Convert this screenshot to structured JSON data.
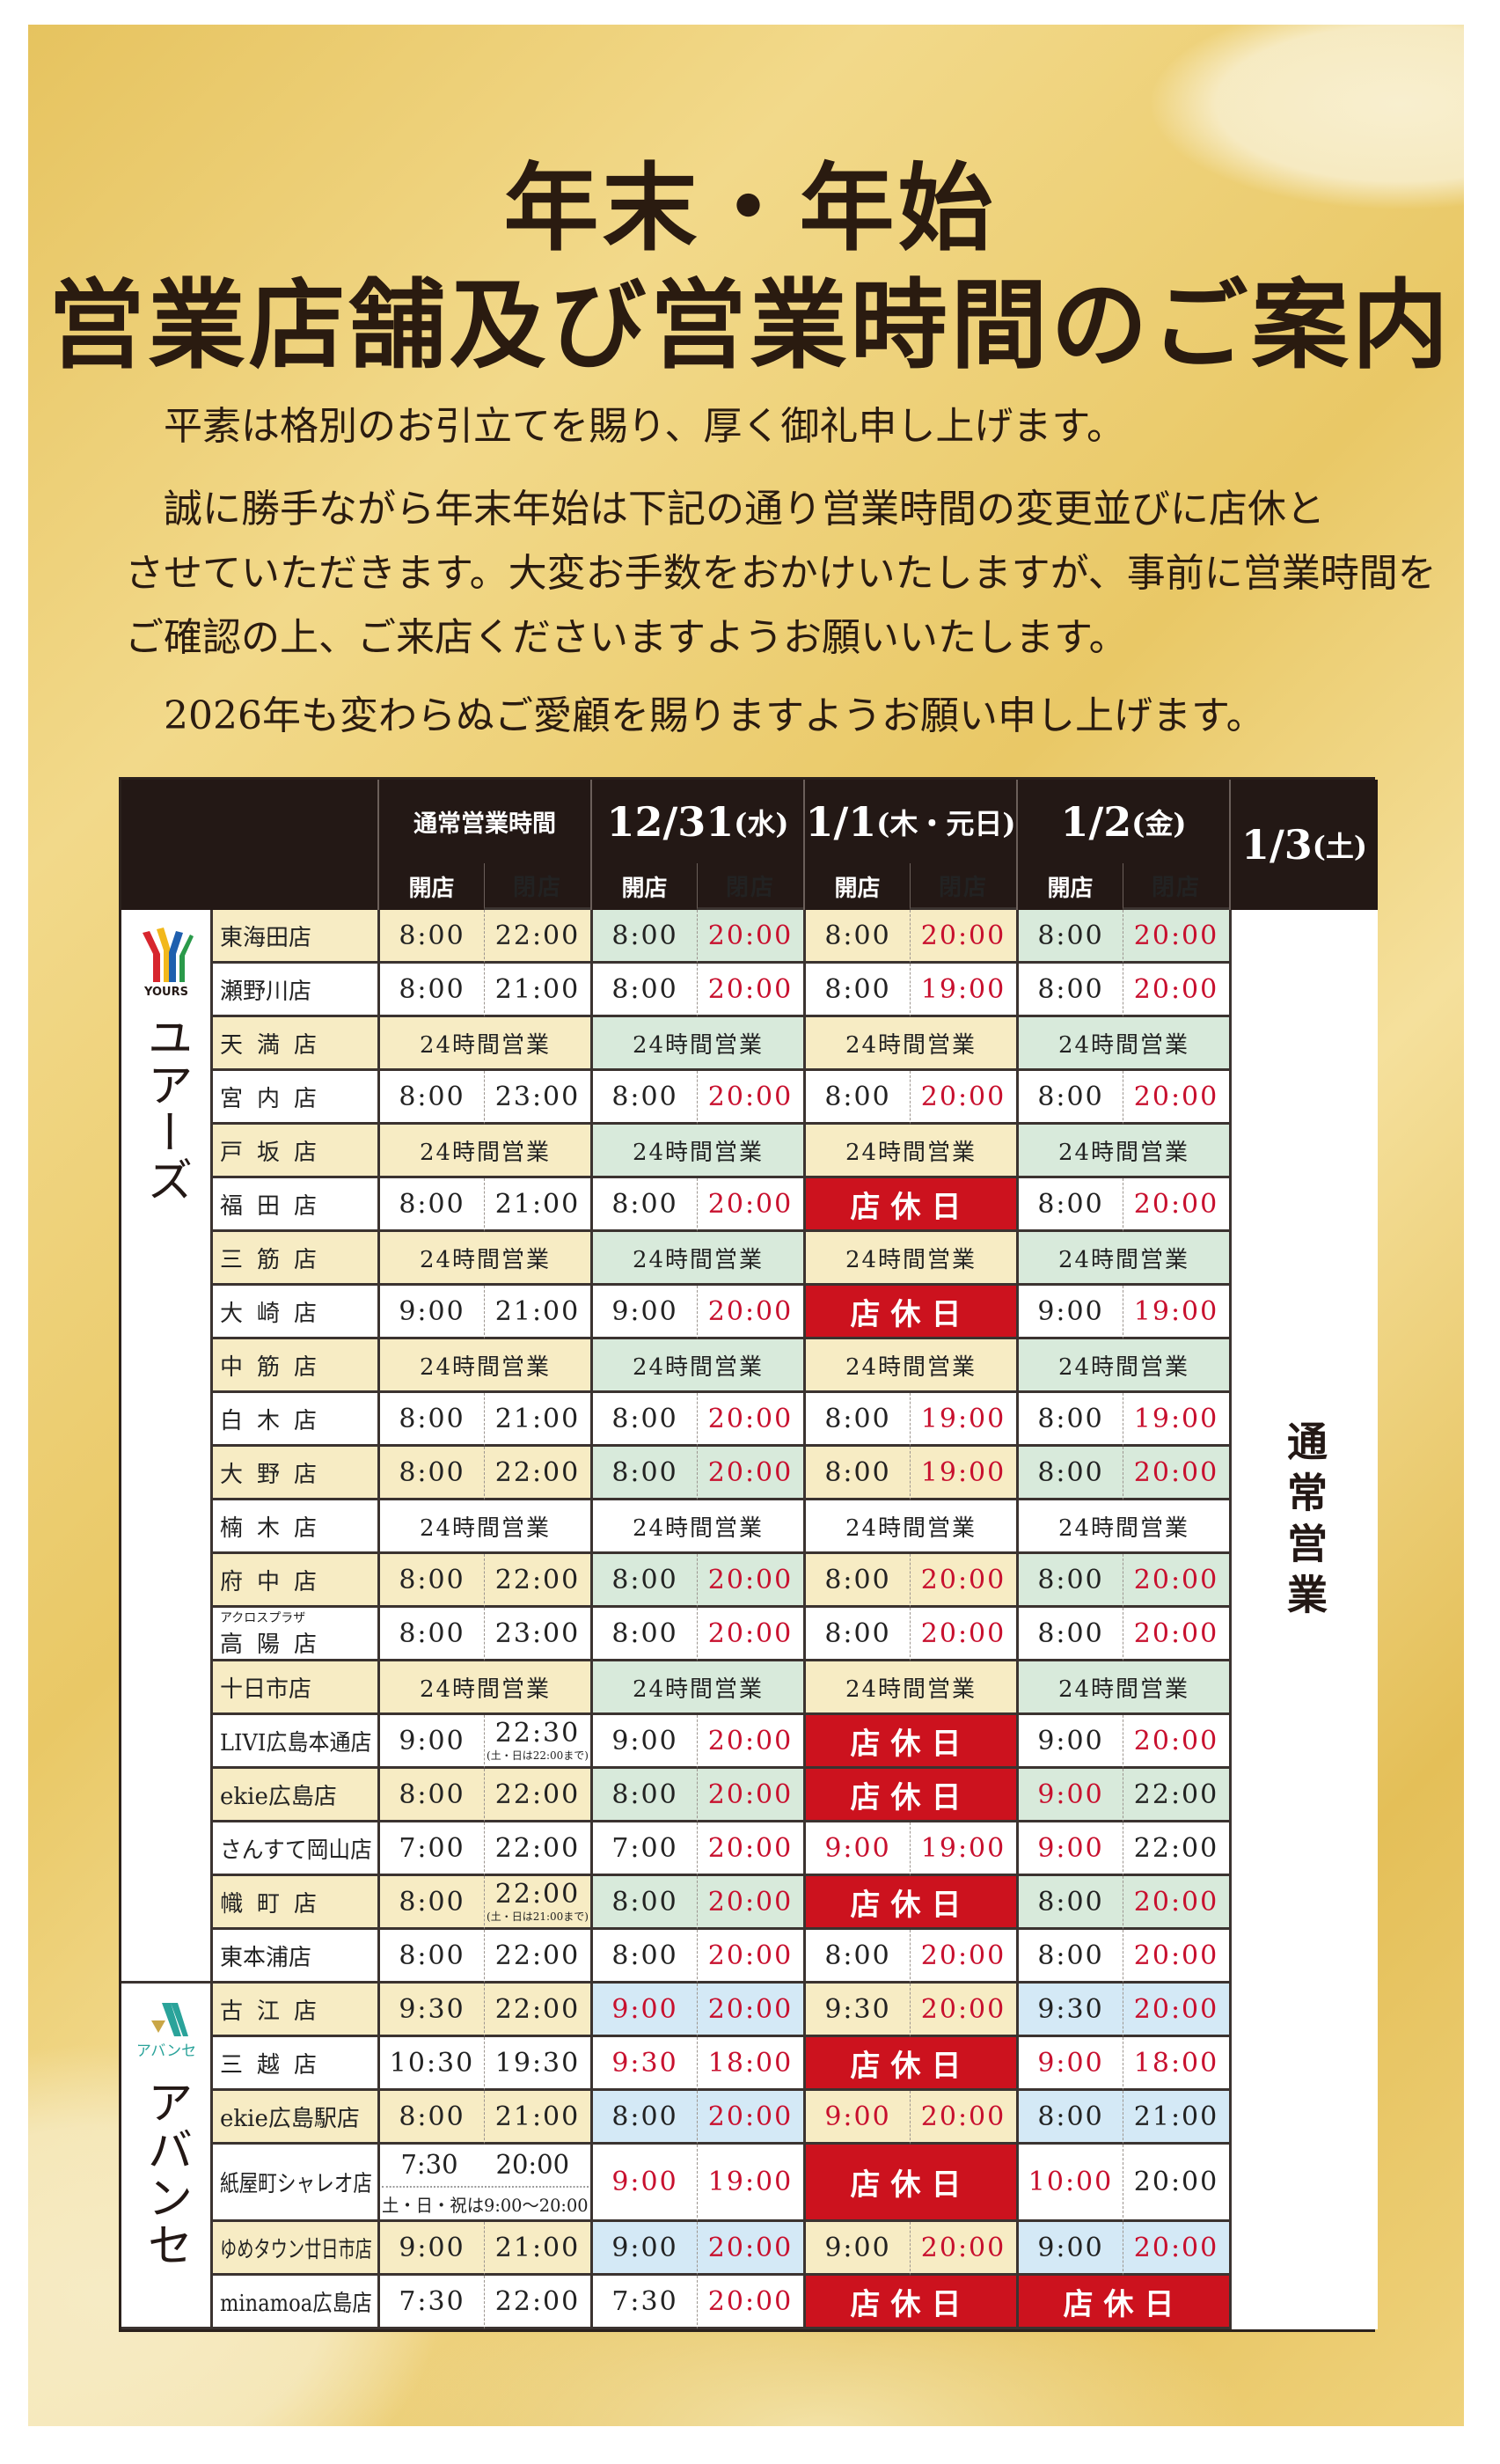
{
  "title": {
    "line1": "年末・年始",
    "line2": "営業店舗及び営業時間のご案内"
  },
  "intro": {
    "p1": "平素は格別のお引立てを賜り、厚く御礼申し上げます。",
    "p2": [
      "誠に勝手ながら年末年始は下記の通り営業時間の変更並びに店休と",
      "させていただきます。大変お手数をおかけいたしますが、事前に営業時間を",
      "ご確認の上、ご来店くださいますようお願いいたします。"
    ],
    "p3": "2026年も変わらぬご愛顧を賜りますようお願い申し上げます。"
  },
  "colors": {
    "header": "#231815",
    "yellow": "#f7ecc4",
    "green": "#d8eadb",
    "blue": "#d4e9f6",
    "closed": "#cc121e",
    "red_text": "#c8102e"
  },
  "table": {
    "normal_label": "通常営業時間",
    "dates": [
      {
        "date": "12/31",
        "day": "(水)"
      },
      {
        "date": "1/1",
        "day": "(木・元日)"
      },
      {
        "date": "1/2",
        "day": "(金)"
      },
      {
        "date": "1/3",
        "day": "(土)"
      }
    ],
    "open_label": "開店",
    "close_label": "閉店",
    "labels": {
      "h24": "24時間営業",
      "closed": "店休日"
    },
    "jan3_text": "通常営業",
    "groups": [
      {
        "brand": "ユアーズ",
        "logo_text": "YOURS",
        "alt_color": "#d8eadb",
        "rows": [
          {
            "name": "東海田店",
            "shaded": true,
            "normal": {
              "open": "8:00",
              "close": "22:00"
            },
            "days": [
              {
                "open": "8:00",
                "close": "20:00",
                "open_red": false,
                "close_red": true
              },
              {
                "open": "8:00",
                "close": "20:00",
                "open_red": false,
                "close_red": true
              },
              {
                "open": "8:00",
                "close": "20:00",
                "open_red": false,
                "close_red": true
              }
            ]
          },
          {
            "name": "瀬野川店",
            "shaded": false,
            "normal": {
              "open": "8:00",
              "close": "21:00"
            },
            "days": [
              {
                "open": "8:00",
                "close": "20:00",
                "open_red": false,
                "close_red": true
              },
              {
                "open": "8:00",
                "close": "19:00",
                "open_red": false,
                "close_red": true
              },
              {
                "open": "8:00",
                "close": "20:00",
                "open_red": false,
                "close_red": true
              }
            ]
          },
          {
            "name": "天満店",
            "shaded": true,
            "normal": {
              "status": "24h"
            },
            "days": [
              {
                "status": "24h"
              },
              {
                "status": "24h"
              },
              {
                "status": "24h"
              }
            ]
          },
          {
            "name": "宮内店",
            "shaded": false,
            "normal": {
              "open": "8:00",
              "close": "23:00"
            },
            "days": [
              {
                "open": "8:00",
                "close": "20:00",
                "open_red": false,
                "close_red": true
              },
              {
                "open": "8:00",
                "close": "20:00",
                "open_red": false,
                "close_red": true
              },
              {
                "open": "8:00",
                "close": "20:00",
                "open_red": false,
                "close_red": true
              }
            ]
          },
          {
            "name": "戸坂店",
            "shaded": true,
            "normal": {
              "status": "24h"
            },
            "days": [
              {
                "status": "24h"
              },
              {
                "status": "24h"
              },
              {
                "status": "24h"
              }
            ]
          },
          {
            "name": "福田店",
            "shaded": false,
            "normal": {
              "open": "8:00",
              "close": "21:00"
            },
            "days": [
              {
                "open": "8:00",
                "close": "20:00",
                "open_red": false,
                "close_red": true
              },
              {
                "status": "closed"
              },
              {
                "open": "8:00",
                "close": "20:00",
                "open_red": false,
                "close_red": true
              }
            ]
          },
          {
            "name": "三筋店",
            "shaded": true,
            "normal": {
              "status": "24h"
            },
            "days": [
              {
                "status": "24h"
              },
              {
                "status": "24h"
              },
              {
                "status": "24h"
              }
            ]
          },
          {
            "name": "大崎店",
            "shaded": false,
            "normal": {
              "open": "9:00",
              "close": "21:00"
            },
            "days": [
              {
                "open": "9:00",
                "close": "20:00",
                "open_red": false,
                "close_red": true
              },
              {
                "status": "closed"
              },
              {
                "open": "9:00",
                "close": "19:00",
                "open_red": false,
                "close_red": true
              }
            ]
          },
          {
            "name": "中筋店",
            "shaded": true,
            "normal": {
              "status": "24h"
            },
            "days": [
              {
                "status": "24h"
              },
              {
                "status": "24h"
              },
              {
                "status": "24h"
              }
            ]
          },
          {
            "name": "白木店",
            "shaded": false,
            "normal": {
              "open": "8:00",
              "close": "21:00"
            },
            "days": [
              {
                "open": "8:00",
                "close": "20:00",
                "open_red": false,
                "close_red": true
              },
              {
                "open": "8:00",
                "close": "19:00",
                "open_red": false,
                "close_red": true
              },
              {
                "open": "8:00",
                "close": "19:00",
                "open_red": false,
                "close_red": true
              }
            ]
          },
          {
            "name": "大野店",
            "shaded": true,
            "normal": {
              "open": "8:00",
              "close": "22:00"
            },
            "days": [
              {
                "open": "8:00",
                "close": "20:00",
                "open_red": false,
                "close_red": true
              },
              {
                "open": "8:00",
                "close": "19:00",
                "open_red": false,
                "close_red": true
              },
              {
                "open": "8:00",
                "close": "20:00",
                "open_red": false,
                "close_red": true
              }
            ]
          },
          {
            "name": "楠木店",
            "shaded": false,
            "normal": {
              "status": "24h"
            },
            "days": [
              {
                "status": "24h"
              },
              {
                "status": "24h"
              },
              {
                "status": "24h"
              }
            ]
          },
          {
            "name": "府中店",
            "shaded": true,
            "normal": {
              "open": "8:00",
              "close": "22:00"
            },
            "days": [
              {
                "open": "8:00",
                "close": "20:00",
                "open_red": false,
                "close_red": true
              },
              {
                "open": "8:00",
                "close": "20:00",
                "open_red": false,
                "close_red": true
              },
              {
                "open": "8:00",
                "close": "20:00",
                "open_red": false,
                "close_red": true
              }
            ]
          },
          {
            "name": "高陽店",
            "name_prefix": "アクロスプラザ",
            "shaded": false,
            "normal": {
              "open": "8:00",
              "close": "23:00"
            },
            "days": [
              {
                "open": "8:00",
                "close": "20:00",
                "open_red": false,
                "close_red": true
              },
              {
                "open": "8:00",
                "close": "20:00",
                "open_red": false,
                "close_red": true
              },
              {
                "open": "8:00",
                "close": "20:00",
                "open_red": false,
                "close_red": true
              }
            ]
          },
          {
            "name": "十日市店",
            "shaded": true,
            "normal": {
              "status": "24h"
            },
            "days": [
              {
                "status": "24h"
              },
              {
                "status": "24h"
              },
              {
                "status": "24h"
              }
            ]
          },
          {
            "name": "LIVI広島本通店",
            "shaded": false,
            "normal": {
              "open": "9:00",
              "close": "22:30",
              "close_note": "(土・日は22:00まで)"
            },
            "days": [
              {
                "open": "9:00",
                "close": "20:00",
                "open_red": false,
                "close_red": true
              },
              {
                "status": "closed"
              },
              {
                "open": "9:00",
                "close": "20:00",
                "open_red": false,
                "close_red": true
              }
            ]
          },
          {
            "name": "ekie広島店",
            "shaded": true,
            "normal": {
              "open": "8:00",
              "close": "22:00"
            },
            "days": [
              {
                "open": "8:00",
                "close": "20:00",
                "open_red": false,
                "close_red": true
              },
              {
                "status": "closed"
              },
              {
                "open": "9:00",
                "close": "22:00",
                "open_red": true,
                "close_red": false
              }
            ]
          },
          {
            "name": "さんすて岡山店",
            "shaded": false,
            "normal": {
              "open": "7:00",
              "close": "22:00"
            },
            "days": [
              {
                "open": "7:00",
                "close": "20:00",
                "open_red": false,
                "close_red": true
              },
              {
                "open": "9:00",
                "close": "19:00",
                "open_red": true,
                "close_red": true
              },
              {
                "open": "9:00",
                "close": "22:00",
                "open_red": true,
                "close_red": false
              }
            ]
          },
          {
            "name": "幟町店",
            "shaded": true,
            "normal": {
              "open": "8:00",
              "close": "22:00",
              "close_note": "(土・日は21:00まで)"
            },
            "days": [
              {
                "open": "8:00",
                "close": "20:00",
                "open_red": false,
                "close_red": true
              },
              {
                "status": "closed"
              },
              {
                "open": "8:00",
                "close": "20:00",
                "open_red": false,
                "close_red": true
              }
            ]
          },
          {
            "name": "東本浦店",
            "shaded": false,
            "normal": {
              "open": "8:00",
              "close": "22:00"
            },
            "days": [
              {
                "open": "8:00",
                "close": "20:00",
                "open_red": false,
                "close_red": true
              },
              {
                "open": "8:00",
                "close": "20:00",
                "open_red": false,
                "close_red": true
              },
              {
                "open": "8:00",
                "close": "20:00",
                "open_red": false,
                "close_red": true
              }
            ]
          }
        ]
      },
      {
        "brand": "アバンセ",
        "logo_text": "アバンセ",
        "alt_color": "#d4e9f6",
        "rows": [
          {
            "name": "古江店",
            "shaded": true,
            "normal": {
              "open": "9:30",
              "close": "22:00"
            },
            "days": [
              {
                "open": "9:00",
                "close": "20:00",
                "open_red": true,
                "close_red": true
              },
              {
                "open": "9:30",
                "close": "20:00",
                "open_red": false,
                "close_red": true
              },
              {
                "open": "9:30",
                "close": "20:00",
                "open_red": false,
                "close_red": true
              }
            ]
          },
          {
            "name": "三越店",
            "shaded": false,
            "normal": {
              "open": "10:30",
              "close": "19:30"
            },
            "days": [
              {
                "open": "9:30",
                "close": "18:00",
                "open_red": true,
                "close_red": true
              },
              {
                "status": "closed"
              },
              {
                "open": "9:00",
                "close": "18:00",
                "open_red": true,
                "close_red": true
              }
            ]
          },
          {
            "name": "ekie広島駅店",
            "shaded": true,
            "normal": {
              "open": "8:00",
              "close": "21:00"
            },
            "days": [
              {
                "open": "8:00",
                "close": "20:00",
                "open_red": false,
                "close_red": true
              },
              {
                "open": "9:00",
                "close": "20:00",
                "open_red": true,
                "close_red": true
              },
              {
                "open": "8:00",
                "close": "21:00",
                "open_red": false,
                "close_red": false
              }
            ]
          },
          {
            "name": "紙屋町シャレオ店",
            "shaded": false,
            "tall": true,
            "normal": {
              "open": "7:30",
              "close": "20:00",
              "note": "土・日・祝は9:00～20:00"
            },
            "days": [
              {
                "open": "9:00",
                "close": "19:00",
                "open_red": true,
                "close_red": true
              },
              {
                "status": "closed"
              },
              {
                "open": "10:00",
                "close": "20:00",
                "open_red": true,
                "close_red": false
              }
            ]
          },
          {
            "name": "ゆめタウン廿日市店",
            "shaded": true,
            "normal": {
              "open": "9:00",
              "close": "21:00"
            },
            "days": [
              {
                "open": "9:00",
                "close": "20:00",
                "open_red": false,
                "close_red": true
              },
              {
                "open": "9:00",
                "close": "20:00",
                "open_red": false,
                "close_red": true
              },
              {
                "open": "9:00",
                "close": "20:00",
                "open_red": false,
                "close_red": true
              }
            ]
          },
          {
            "name": "minamoa広島店",
            "shaded": false,
            "normal": {
              "open": "7:30",
              "close": "22:00"
            },
            "days": [
              {
                "open": "7:30",
                "close": "20:00",
                "open_red": false,
                "close_red": true
              },
              {
                "status": "closed"
              },
              {
                "status": "closed"
              }
            ]
          }
        ]
      }
    ]
  }
}
